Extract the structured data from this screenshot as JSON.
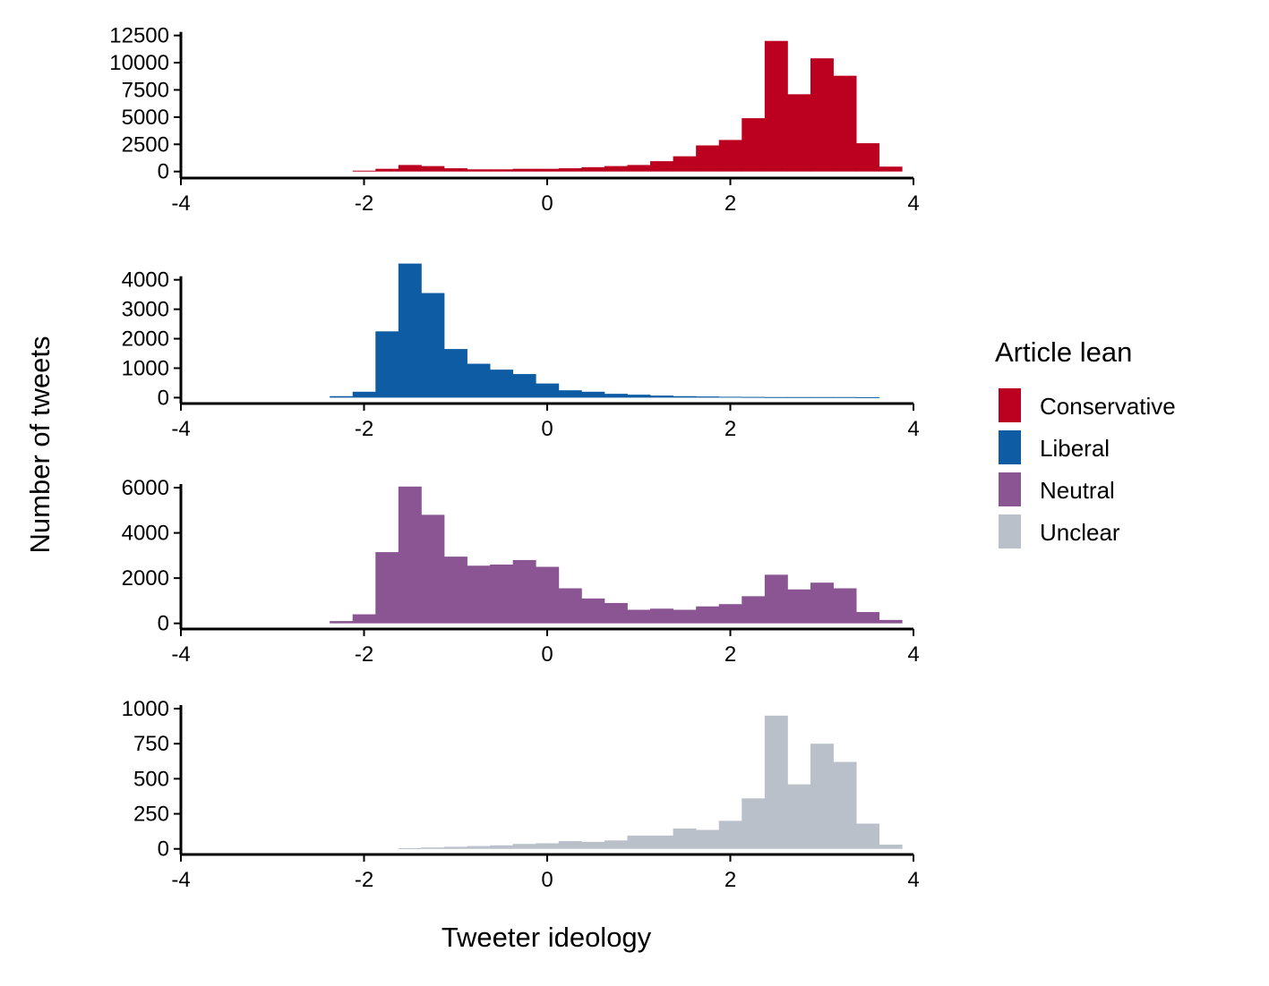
{
  "chart_data": {
    "type": "bar",
    "subtype": "faceted histogram",
    "xlabel": "Tweeter ideology",
    "ylabel": "Number of tweets",
    "xlim": [
      -4,
      4
    ],
    "x_ticks": [
      "-4",
      "-2",
      "0",
      "2",
      "4"
    ],
    "bin_width": 0.25,
    "bin_starts": [
      -2.375,
      -2.125,
      -1.875,
      -1.625,
      -1.375,
      -1.125,
      -0.875,
      -0.625,
      -0.375,
      -0.125,
      0.125,
      0.375,
      0.625,
      0.875,
      1.125,
      1.375,
      1.625,
      1.875,
      2.125,
      2.375,
      2.625,
      2.875,
      3.125,
      3.375,
      3.625
    ],
    "legend": {
      "title": "Article lean",
      "position": "right",
      "items": [
        {
          "label": "Conservative",
          "color": "#bc0020"
        },
        {
          "label": "Liberal",
          "color": "#0e5ca3"
        },
        {
          "label": "Neutral",
          "color": "#8b5594"
        },
        {
          "label": "Unclear",
          "color": "#b9c0ca"
        }
      ]
    },
    "panels": [
      {
        "series": "Conservative",
        "color": "#bc0020",
        "ylim": [
          -600,
          12800
        ],
        "y_ticks": [
          "0",
          "2500",
          "5000",
          "7500",
          "10000",
          "12500"
        ],
        "values": [
          0,
          80,
          250,
          600,
          500,
          300,
          200,
          200,
          250,
          250,
          300,
          400,
          500,
          600,
          950,
          1400,
          2400,
          2900,
          4900,
          12000,
          7100,
          10400,
          8800,
          2600,
          450
        ]
      },
      {
        "series": "Liberal",
        "color": "#0e5ca3",
        "ylim": [
          -200,
          4750
        ],
        "y_ticks": [
          "0",
          "1000",
          "2000",
          "3000",
          "4000"
        ],
        "values": [
          50,
          200,
          2250,
          4550,
          3550,
          1650,
          1150,
          950,
          800,
          480,
          250,
          200,
          130,
          100,
          70,
          50,
          40,
          30,
          25,
          20,
          20,
          20,
          20,
          15,
          0
        ]
      },
      {
        "series": "Neutral",
        "color": "#8b5594",
        "ylim": [
          -250,
          6200
        ],
        "y_ticks": [
          "0",
          "2000",
          "4000",
          "6000"
        ],
        "values": [
          100,
          400,
          3150,
          6050,
          4800,
          2950,
          2550,
          2600,
          2800,
          2500,
          1550,
          1100,
          900,
          600,
          650,
          600,
          750,
          850,
          1200,
          2150,
          1500,
          1800,
          1550,
          500,
          150
        ]
      },
      {
        "series": "Unclear",
        "color": "#b9c0ca",
        "ylim": [
          -40,
          1000
        ],
        "y_ticks": [
          "0",
          "250",
          "500",
          "750",
          "1000"
        ],
        "values": [
          0,
          0,
          0,
          5,
          10,
          15,
          20,
          25,
          35,
          40,
          55,
          50,
          60,
          95,
          95,
          145,
          135,
          200,
          360,
          950,
          460,
          750,
          620,
          180,
          30
        ]
      }
    ]
  }
}
